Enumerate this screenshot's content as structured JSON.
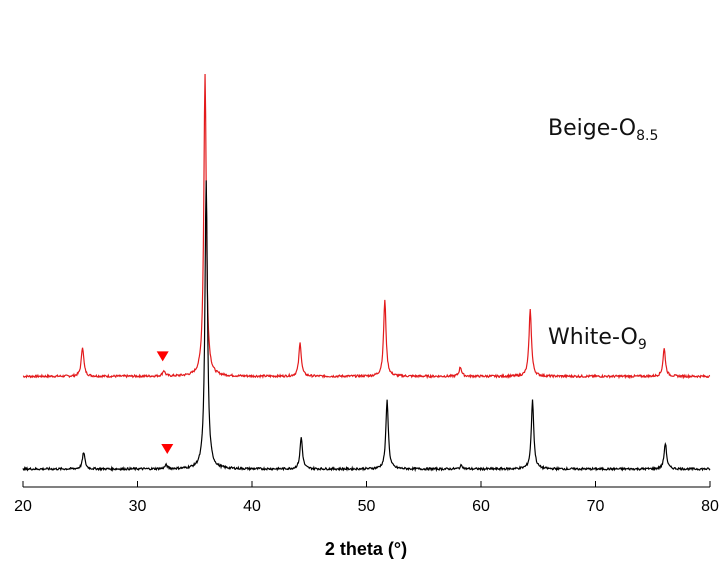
{
  "chart_data": {
    "type": "line",
    "xlabel": "2 theta (°)",
    "xlim": [
      20,
      80
    ],
    "xticks": [
      20,
      30,
      40,
      50,
      60,
      70,
      80
    ],
    "y_axis_visible": false,
    "grid": false,
    "series": [
      {
        "name": "Beige-O8.5",
        "label_main": "Beige-O",
        "label_sub": "8.5",
        "color": "#e31a1c",
        "baseline": 0.5,
        "peaks": [
          {
            "x": 25.2,
            "h": 0.16
          },
          {
            "x": 32.3,
            "h": 0.03
          },
          {
            "x": 35.9,
            "h": 1.63
          },
          {
            "x": 44.2,
            "h": 0.18
          },
          {
            "x": 51.6,
            "h": 0.41
          },
          {
            "x": 58.2,
            "h": 0.05
          },
          {
            "x": 64.3,
            "h": 0.36
          },
          {
            "x": 76.0,
            "h": 0.15
          }
        ],
        "marker": {
          "x": 32.2,
          "symbol": "triangle-down",
          "color": "#ff0000"
        }
      },
      {
        "name": "White-O9",
        "label_main": "White-O",
        "label_sub": "9",
        "color": "#000000",
        "baseline": 0.0,
        "peaks": [
          {
            "x": 25.3,
            "h": 0.09
          },
          {
            "x": 32.5,
            "h": 0.02
          },
          {
            "x": 36.0,
            "h": 1.56
          },
          {
            "x": 44.3,
            "h": 0.17
          },
          {
            "x": 51.8,
            "h": 0.37
          },
          {
            "x": 58.3,
            "h": 0.02
          },
          {
            "x": 64.5,
            "h": 0.37
          },
          {
            "x": 76.1,
            "h": 0.14
          }
        ],
        "marker": {
          "x": 32.6,
          "symbol": "triangle-down",
          "color": "#ff0000"
        }
      }
    ]
  }
}
